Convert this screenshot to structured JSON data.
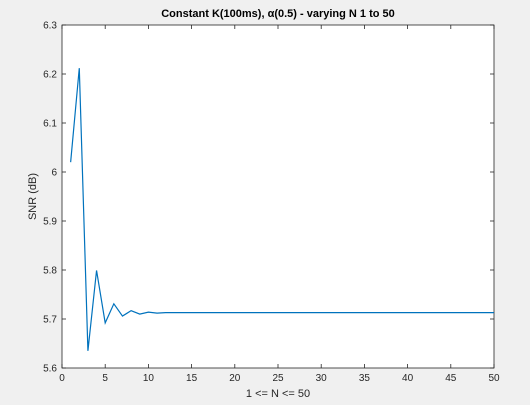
{
  "chart_data": {
    "type": "line",
    "title": "Constant K(100ms), α(0.5) - varying N 1 to 50",
    "xlabel": "1 <= N <= 50",
    "ylabel": "SNR (dB)",
    "xlim": [
      0,
      50
    ],
    "ylim": [
      5.6,
      6.3
    ],
    "x_ticks": [
      0,
      5,
      10,
      15,
      20,
      25,
      30,
      35,
      40,
      45,
      50
    ],
    "y_ticks": [
      5.6,
      5.7,
      5.8,
      5.9,
      6.0,
      6.1,
      6.2,
      6.3
    ],
    "x_tick_labels": [
      "0",
      "5",
      "10",
      "15",
      "20",
      "25",
      "30",
      "35",
      "40",
      "45",
      "50"
    ],
    "y_tick_labels": [
      "5.6",
      "5.7",
      "5.8",
      "5.9",
      "6",
      "6.1",
      "6.2",
      "6.3"
    ],
    "grid": false,
    "line_color": "#0072bd",
    "series": [
      {
        "x": [
          1,
          2,
          3,
          4,
          5,
          6,
          7,
          8,
          9,
          10,
          11,
          12,
          13,
          14,
          15,
          16,
          17,
          18,
          19,
          20,
          21,
          22,
          23,
          24,
          25,
          26,
          27,
          28,
          29,
          30,
          31,
          32,
          33,
          34,
          35,
          36,
          37,
          38,
          39,
          40,
          41,
          42,
          43,
          44,
          45,
          46,
          47,
          48,
          49,
          50
        ],
        "values": [
          6.02,
          6.212,
          5.635,
          5.799,
          5.692,
          5.731,
          5.706,
          5.717,
          5.71,
          5.714,
          5.712,
          5.713,
          5.713,
          5.713,
          5.713,
          5.713,
          5.713,
          5.713,
          5.713,
          5.713,
          5.713,
          5.713,
          5.713,
          5.713,
          5.713,
          5.713,
          5.713,
          5.713,
          5.713,
          5.713,
          5.713,
          5.713,
          5.713,
          5.713,
          5.713,
          5.713,
          5.713,
          5.713,
          5.713,
          5.713,
          5.713,
          5.713,
          5.713,
          5.713,
          5.713,
          5.713,
          5.713,
          5.713,
          5.713,
          5.713
        ]
      }
    ]
  }
}
